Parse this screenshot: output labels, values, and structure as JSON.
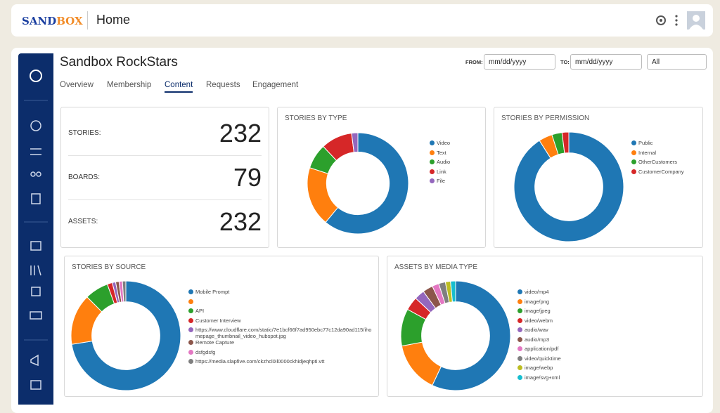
{
  "header": {
    "logo": [
      "SAND",
      "BOX"
    ],
    "page": "Home"
  },
  "title": "Sandbox RockStars",
  "tabs": [
    "Overview",
    "Membership",
    "Content",
    "Requests",
    "Engagement"
  ],
  "filters": {
    "from_label": "FROM:",
    "to_label": "TO:",
    "from_placeholder": "mm/dd/yyyy",
    "to_placeholder": "mm/dd/yyyy",
    "select": "All"
  },
  "stats": [
    {
      "label": "STORIES:",
      "value": 232
    },
    {
      "label": "BOARDS:",
      "value": 79
    },
    {
      "label": "ASSETS:",
      "value": 232
    }
  ],
  "chart_data": [
    {
      "type": "pie",
      "title": "STORIES BY TYPE",
      "categories": [
        "Video",
        "Text",
        "Audio",
        "Link",
        "File"
      ],
      "values": [
        61,
        19,
        8,
        10,
        2
      ],
      "colors": [
        "#1f77b4",
        "#ff7f0e",
        "#2ca02c",
        "#d62728",
        "#9467bd"
      ]
    },
    {
      "type": "pie",
      "title": "STORIES BY PERMISSION",
      "categories": [
        "Public",
        "Internal",
        "OtherCustomers",
        "CustomerCompany"
      ],
      "values": [
        91,
        4,
        3,
        2
      ],
      "colors": [
        "#1f77b4",
        "#ff7f0e",
        "#2ca02c",
        "#d62728"
      ]
    },
    {
      "type": "pie",
      "title": "STORIES BY SOURCE",
      "categories": [
        "Mobile Prompt",
        null,
        "API",
        "Customer Interview",
        "https://www.cloudflare.com/static/7e1bcf66f7ad950ebc77c12da90ad115/ihomepage_thumbnail_video_hubspot.jpg",
        "Remote Capture",
        "dsfgdsfg",
        "https://media.slapfive.com/ckzhcl0il0000ckhidjeqhpti.vtt"
      ],
      "values": [
        72.5,
        15,
        7,
        1.5,
        1,
        1,
        1,
        1
      ],
      "colors": [
        "#1f77b4",
        "#ff7f0e",
        "#2ca02c",
        "#d62728",
        "#9467bd",
        "#8c564b",
        "#e377c2",
        "#7f7f7f"
      ]
    },
    {
      "type": "pie",
      "title": "ASSETS BY MEDIA TYPE",
      "categories": [
        "video/mp4",
        "image/png",
        "image/jpeg",
        "video/webm",
        "audio/wav",
        "audio/mp3",
        "application/pdf",
        "video/quicktime",
        "image/webp",
        "image/svg+xml"
      ],
      "values": [
        57,
        15,
        11,
        4,
        3,
        3,
        2,
        2,
        1.5,
        1.5
      ],
      "colors": [
        "#1f77b4",
        "#ff7f0e",
        "#2ca02c",
        "#d62728",
        "#9467bd",
        "#8c564b",
        "#e377c2",
        "#7f7f7f",
        "#bcbd22",
        "#17becf"
      ]
    }
  ]
}
